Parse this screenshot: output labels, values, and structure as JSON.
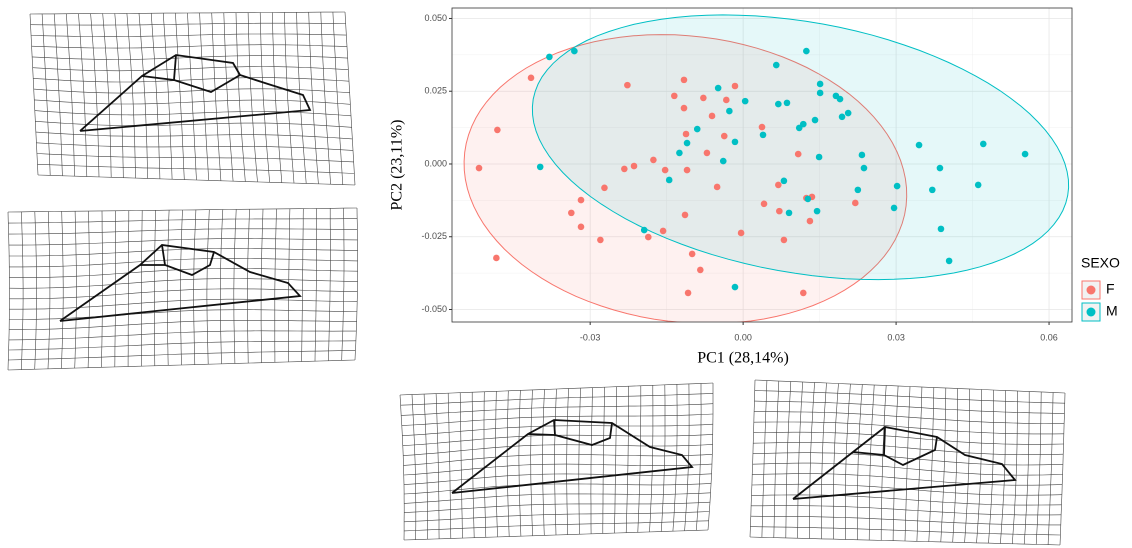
{
  "chart_data": {
    "type": "scatter",
    "x_label": "PC1 (28,14%)",
    "y_label": "PC2 (23,11%)",
    "legend_title": "SEXO",
    "xlim": [
      -0.0571,
      0.0645
    ],
    "ylim": [
      -0.0543,
      0.0536
    ],
    "xticks": [
      -0.03,
      {
        "value": 0,
        "label": "0.00"
      },
      0.03,
      0.06
    ],
    "yticks": [
      {
        "value": -0.05,
        "label": "-0.050"
      },
      -0.025,
      {
        "value": 0,
        "label": "0.000"
      },
      0.025,
      {
        "value": 0.05,
        "label": "0.050"
      }
    ],
    "grid": true,
    "ellipses": true,
    "legend": "right",
    "series": [
      {
        "name": "F",
        "color": "#F8766D",
        "x": [
          -0.0518,
          -0.0482,
          -0.0416,
          -0.0484,
          -0.0337,
          -0.0318,
          -0.0318,
          -0.0272,
          -0.028,
          -0.0227,
          -0.0233,
          -0.0214,
          -0.0186,
          -0.0176,
          -0.0157,
          -0.0153,
          -0.0135,
          -0.0116,
          -0.0116,
          -0.0112,
          -0.011,
          -0.0114,
          -0.01,
          -0.0084,
          -0.0108,
          -0.0078,
          -0.0071,
          -0.0061,
          -0.0051,
          -0.0037,
          -0.0033,
          -0.0016,
          -0.0004,
          0.0037,
          0.0041,
          0.0071,
          0.0069,
          0.008,
          0.0108,
          0.0124,
          0.0131,
          0.0135,
          0.0118,
          0.022
        ],
        "values": [
          -0.0014,
          0.0117,
          0.0296,
          -0.0323,
          -0.0168,
          -0.0124,
          -0.0216,
          -0.0082,
          -0.0261,
          0.0271,
          -0.0017,
          -0.0007,
          -0.0251,
          0.0014,
          -0.023,
          -0.0021,
          0.0234,
          0.0289,
          0.0192,
          0.0103,
          -0.0021,
          -0.0175,
          -0.0309,
          -0.0364,
          -0.0443,
          0.0227,
          0.0038,
          0.0165,
          -0.0079,
          0.0096,
          0.022,
          0.0268,
          -0.0237,
          0.0127,
          -0.0137,
          -0.0162,
          -0.0072,
          -0.0261,
          0.0034,
          -0.0117,
          -0.0196,
          -0.0113,
          -0.0443,
          -0.0134
        ]
      },
      {
        "name": "M",
        "color": "#00BFC4",
        "x": [
          -0.038,
          -0.0331,
          -0.0398,
          -0.0194,
          -0.0145,
          -0.0125,
          -0.011,
          -0.009,
          -0.0049,
          -0.0039,
          -0.0027,
          -0.0016,
          -0.0016,
          0.0004,
          0.0039,
          0.0065,
          0.0069,
          0.0086,
          0.008,
          0.009,
          0.011,
          0.0118,
          0.0124,
          0.0127,
          0.0141,
          0.0145,
          0.0149,
          0.0151,
          0.0151,
          0.0182,
          0.019,
          0.0194,
          0.0206,
          0.0225,
          0.0233,
          0.0237,
          0.0302,
          0.0296,
          0.0345,
          0.0371,
          0.0386,
          0.0388,
          0.0404,
          0.0461,
          0.0471,
          0.0553
        ],
        "values": [
          0.0368,
          0.0388,
          -0.001,
          -0.0227,
          -0.0055,
          0.0038,
          0.0072,
          0.012,
          0.0261,
          0.001,
          0.0182,
          0.0076,
          -0.0423,
          0.0216,
          0.01,
          0.034,
          0.0206,
          0.021,
          -0.0058,
          -0.0168,
          0.0124,
          0.0137,
          0.0388,
          -0.012,
          0.0151,
          -0.0162,
          0.0024,
          0.0275,
          0.0244,
          0.0234,
          0.0223,
          0.0162,
          0.0175,
          -0.0089,
          0.0031,
          -0.0014,
          -0.0076,
          -0.0151,
          0.0065,
          -0.0089,
          -0.0014,
          -0.0223,
          -0.0333,
          -0.0072,
          0.0069,
          0.0034
        ]
      }
    ]
  }
}
